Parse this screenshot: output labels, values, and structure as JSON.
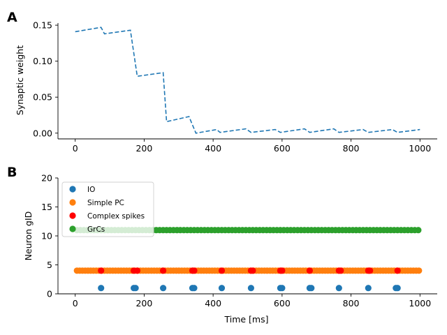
{
  "chart_data": [
    {
      "type": "line",
      "panel_label": "A",
      "title": "",
      "xlabel": "",
      "ylabel": "Synaptic weight",
      "xlim": [
        -50,
        1050
      ],
      "ylim": [
        -0.008,
        0.153
      ],
      "xticks": [
        0,
        200,
        400,
        600,
        800,
        1000
      ],
      "yticks": [
        0.0,
        0.05,
        0.1,
        0.15
      ],
      "ytick_labels": [
        "0.00",
        "0.05",
        "0.10",
        "0.15"
      ],
      "line_style": "dashed",
      "color": "#1f77b4",
      "grid": false,
      "series": [
        {
          "x": [
            0,
            75,
            85,
            160,
            180,
            255,
            265,
            330,
            350,
            410,
            420,
            495,
            510,
            580,
            595,
            665,
            680,
            750,
            765,
            835,
            850,
            920,
            935,
            1000
          ],
          "y": [
            0.141,
            0.147,
            0.138,
            0.143,
            0.079,
            0.084,
            0.016,
            0.023,
            0.0,
            0.005,
            0.001,
            0.006,
            0.001,
            0.005,
            0.001,
            0.006,
            0.001,
            0.006,
            0.001,
            0.005,
            0.001,
            0.005,
            0.001,
            0.005
          ]
        }
      ]
    },
    {
      "type": "scatter",
      "panel_label": "B",
      "title": "",
      "xlabel": "Time [ms]",
      "ylabel": "Neuron gID",
      "xlim": [
        -50,
        1050
      ],
      "ylim": [
        0,
        20
      ],
      "xticks": [
        0,
        200,
        400,
        600,
        800,
        1000
      ],
      "yticks": [
        0,
        5,
        10,
        15,
        20
      ],
      "legend_position": "upper-left",
      "grid": false,
      "series": [
        {
          "name": "IO",
          "color": "#1f77b4",
          "y": 1,
          "x": [
            75,
            170,
            175,
            255,
            340,
            345,
            425,
            510,
            595,
            600,
            680,
            685,
            765,
            850,
            930,
            935
          ]
        },
        {
          "name": "Simple PC",
          "color": "#ff7f0e",
          "y": 4,
          "start": 5,
          "end": 1000,
          "step": 8
        },
        {
          "name": "Complex spikes",
          "color": "#ff0000",
          "y": 4,
          "x": [
            75,
            170,
            180,
            255,
            340,
            345,
            425,
            510,
            515,
            595,
            600,
            680,
            765,
            770,
            850,
            855,
            935
          ]
        },
        {
          "name": "GrCs",
          "color": "#2ca02c",
          "y": 11,
          "start": 5,
          "end": 1000,
          "step": 10
        }
      ]
    }
  ]
}
